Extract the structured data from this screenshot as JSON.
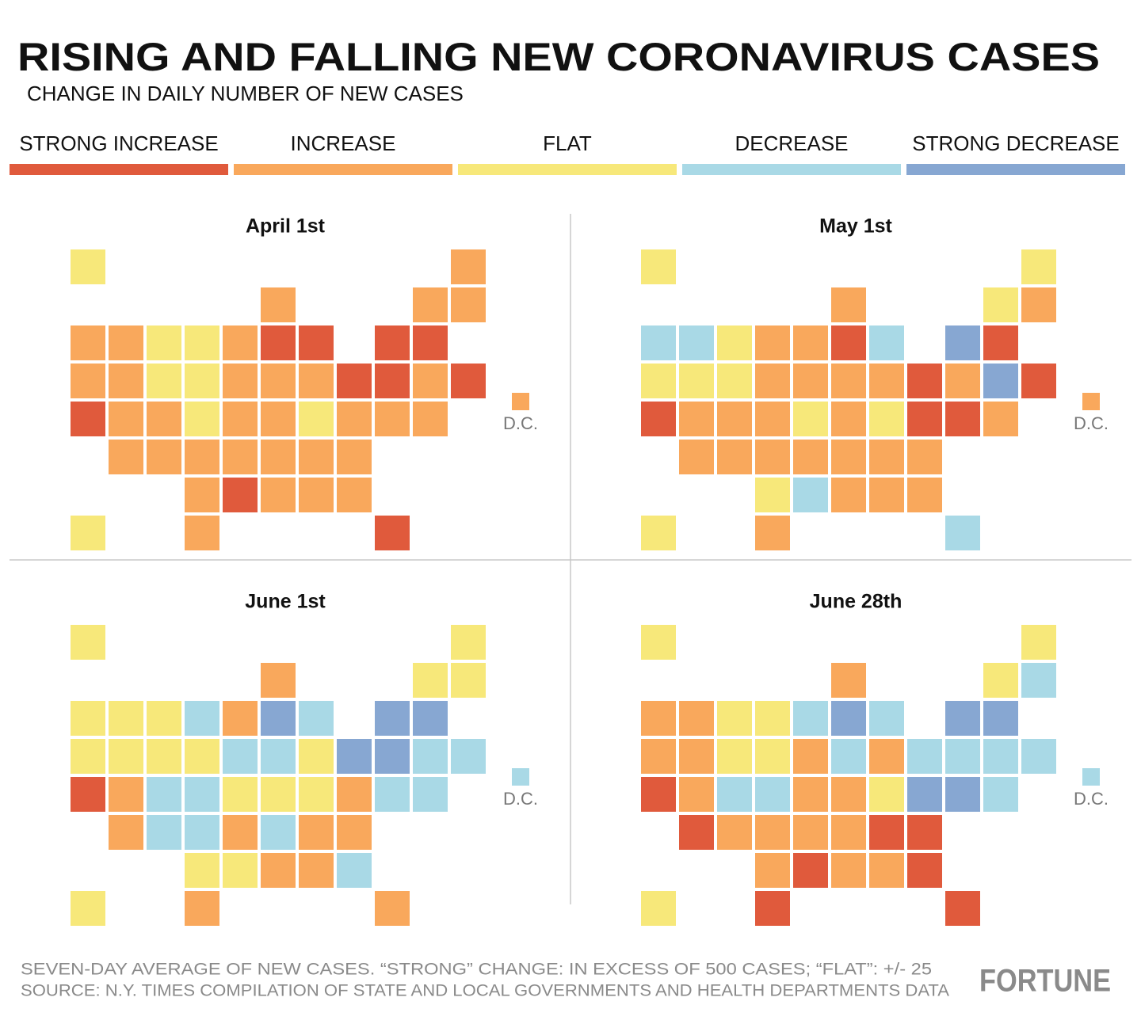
{
  "title": "RISING AND FALLING NEW CORONAVIRUS CASES",
  "subtitle": "CHANGE IN DAILY NUMBER OF NEW CASES",
  "legend": [
    {
      "label": "STRONG INCREASE",
      "color": "#e05a3c"
    },
    {
      "label": "INCREASE",
      "color": "#f9a85c"
    },
    {
      "label": "FLAT",
      "color": "#f7e87a"
    },
    {
      "label": "DECREASE",
      "color": "#a9d9e6"
    },
    {
      "label": "STRONG DECREASE",
      "color": "#87a7d2"
    }
  ],
  "maps": [
    {
      "title": "April 1st",
      "dc_label": "D.C.",
      "states": {
        "WA": 1,
        "OR": 1,
        "CA": 0,
        "ID": 1,
        "NV": 1,
        "UT": 1,
        "AZ": 1,
        "MT": 2,
        "WY": 2,
        "CO": 1,
        "NM": 1,
        "ND": 2,
        "SD": 2,
        "NE": 2,
        "KS": 1,
        "OK": 1,
        "TX": 1,
        "MN": 1,
        "IA": 1,
        "MO": 1,
        "AR": 1,
        "LA": 0,
        "WI": 1,
        "IL": 0,
        "MI": 0,
        "IN": 1,
        "OH": 1,
        "KY": 1,
        "TN": 1,
        "MS": 1,
        "AL": 1,
        "GA": 1,
        "FL": 0,
        "SC": 1,
        "NC": 1,
        "VA": 1,
        "WV": 2,
        "MD": 1,
        "DE": 1,
        "PA": 0,
        "NJ": 0,
        "NY": 0,
        "CT": 1,
        "RI": 0,
        "MA": 0,
        "VT": 1,
        "NH": 1,
        "ME": 1,
        "AK": 2,
        "HI": 2,
        "DC": 1
      }
    },
    {
      "title": "May 1st",
      "dc_label": "D.C.",
      "states": {
        "WA": 3,
        "OR": 2,
        "CA": 0,
        "ID": 3,
        "NV": 2,
        "UT": 1,
        "AZ": 1,
        "MT": 2,
        "WY": 2,
        "CO": 1,
        "NM": 1,
        "ND": 1,
        "SD": 1,
        "NE": 1,
        "KS": 1,
        "OK": 2,
        "TX": 1,
        "MN": 1,
        "IA": 1,
        "MO": 2,
        "AR": 1,
        "LA": 3,
        "WI": 1,
        "IL": 0,
        "MI": 3,
        "IN": 1,
        "OH": 1,
        "KY": 1,
        "TN": 1,
        "MS": 1,
        "AL": 1,
        "GA": 1,
        "FL": 3,
        "SC": 1,
        "NC": 1,
        "VA": 0,
        "WV": 2,
        "MD": 0,
        "DE": 1,
        "PA": 0,
        "NJ": 1,
        "NY": 4,
        "CT": 4,
        "RI": 0,
        "MA": 0,
        "VT": 2,
        "NH": 1,
        "ME": 2,
        "AK": 2,
        "HI": 2,
        "DC": 1
      }
    },
    {
      "title": "June 1st",
      "dc_label": "D.C.",
      "states": {
        "WA": 2,
        "OR": 2,
        "CA": 0,
        "ID": 2,
        "NV": 2,
        "UT": 1,
        "AZ": 1,
        "MT": 2,
        "WY": 2,
        "CO": 3,
        "NM": 3,
        "ND": 3,
        "SD": 2,
        "NE": 3,
        "KS": 3,
        "OK": 2,
        "TX": 1,
        "MN": 1,
        "IA": 3,
        "MO": 2,
        "AR": 1,
        "LA": 2,
        "WI": 1,
        "IL": 4,
        "MI": 3,
        "IN": 3,
        "OH": 2,
        "KY": 2,
        "TN": 3,
        "MS": 1,
        "AL": 1,
        "GA": 3,
        "FL": 1,
        "SC": 1,
        "NC": 1,
        "VA": 1,
        "WV": 2,
        "MD": 3,
        "DE": 3,
        "PA": 4,
        "NJ": 4,
        "NY": 4,
        "CT": 3,
        "RI": 3,
        "MA": 4,
        "VT": 2,
        "NH": 2,
        "ME": 2,
        "AK": 2,
        "HI": 2,
        "DC": 3
      }
    },
    {
      "title": "June 28th",
      "dc_label": "D.C.",
      "states": {
        "WA": 1,
        "OR": 1,
        "CA": 0,
        "ID": 1,
        "NV": 1,
        "UT": 1,
        "AZ": 0,
        "MT": 2,
        "WY": 2,
        "CO": 3,
        "NM": 1,
        "ND": 2,
        "SD": 2,
        "NE": 3,
        "KS": 1,
        "OK": 1,
        "TX": 0,
        "MN": 3,
        "IA": 1,
        "MO": 1,
        "AR": 1,
        "LA": 0,
        "WI": 1,
        "IL": 4,
        "MI": 3,
        "IN": 3,
        "OH": 1,
        "KY": 1,
        "TN": 1,
        "MS": 1,
        "AL": 1,
        "GA": 0,
        "FL": 0,
        "SC": 0,
        "NC": 0,
        "VA": 4,
        "WV": 2,
        "MD": 4,
        "DE": 3,
        "PA": 3,
        "NJ": 3,
        "NY": 4,
        "CT": 3,
        "RI": 3,
        "MA": 4,
        "VT": 2,
        "NH": 3,
        "ME": 2,
        "AK": 2,
        "HI": 2,
        "DC": 3
      }
    }
  ],
  "footer": {
    "note": "SEVEN-DAY AVERAGE OF NEW CASES. “STRONG” CHANGE: IN EXCESS OF 500 CASES; “FLAT”: +/- 25",
    "source": "SOURCE: N.Y. TIMES COMPILATION OF STATE AND LOCAL GOVERNMENTS AND HEALTH DEPARTMENTS DATA"
  },
  "brand": "FORTUNE"
}
